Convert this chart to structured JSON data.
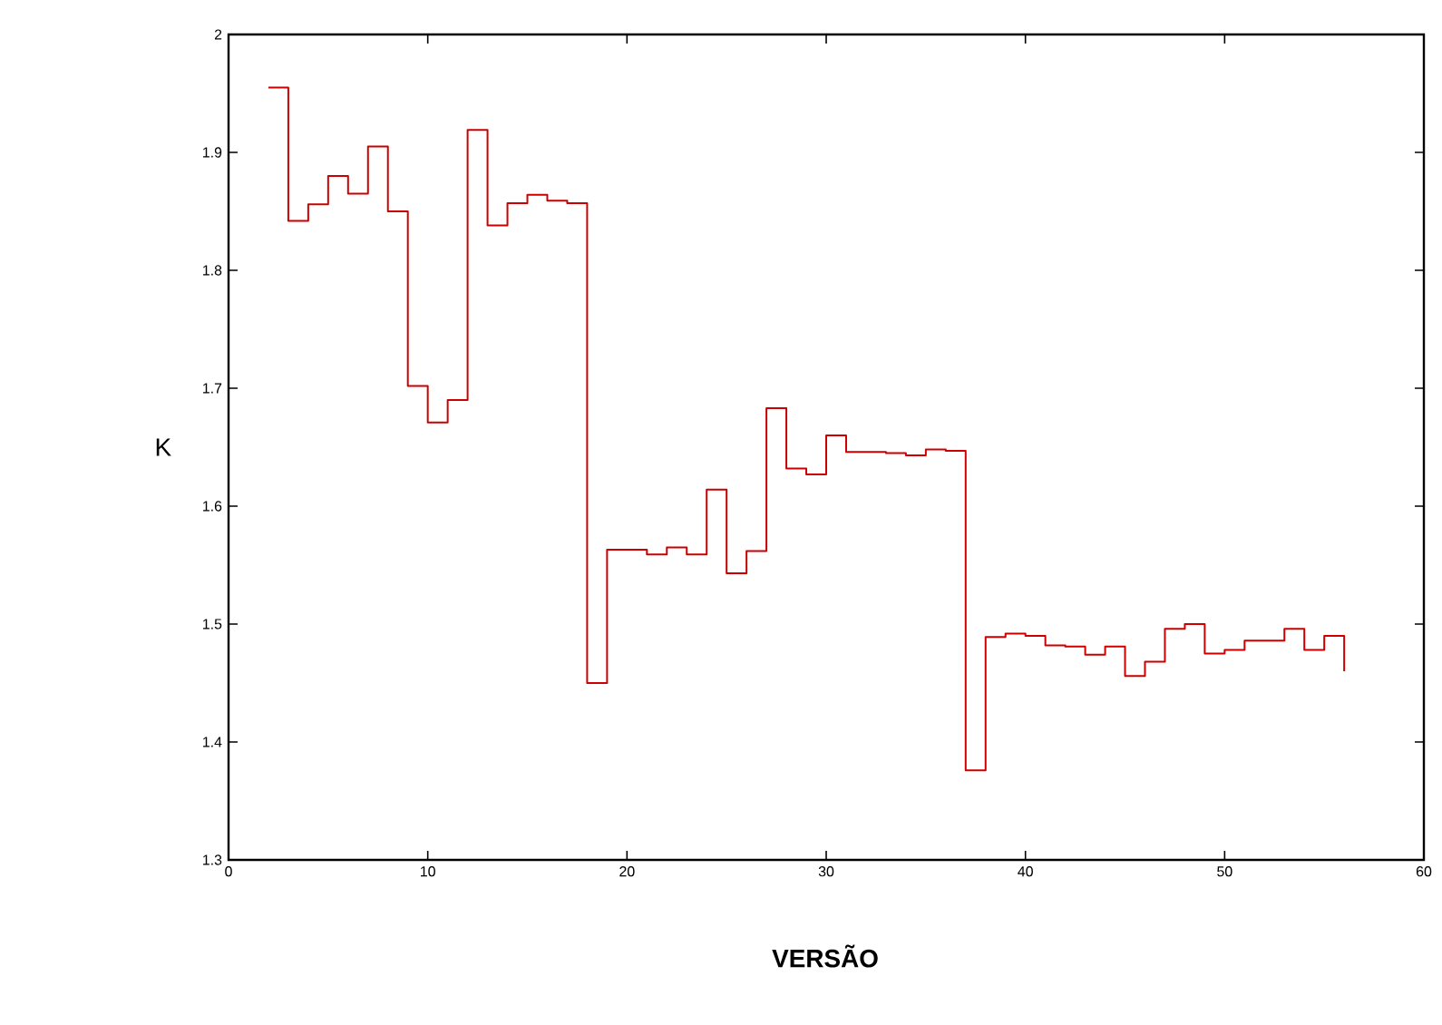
{
  "chart_data": {
    "type": "step",
    "xlabel": "VERSÃO",
    "ylabel": "K",
    "x": [
      2,
      3,
      4,
      5,
      6,
      7,
      8,
      9,
      10,
      11,
      12,
      13,
      14,
      15,
      16,
      17,
      18,
      19,
      20,
      21,
      22,
      23,
      24,
      25,
      26,
      27,
      28,
      29,
      30,
      31,
      32,
      33,
      34,
      35,
      36,
      37,
      38,
      39,
      40,
      41,
      42,
      43,
      44,
      45,
      46,
      47,
      48,
      49,
      50,
      51,
      52,
      53,
      54,
      55,
      56
    ],
    "series": [
      {
        "color": "#cc0000",
        "values": [
          1.955,
          1.842,
          1.856,
          1.88,
          1.865,
          1.905,
          1.85,
          1.702,
          1.671,
          1.69,
          1.919,
          1.838,
          1.857,
          1.864,
          1.859,
          1.857,
          1.45,
          1.563,
          1.563,
          1.559,
          1.565,
          1.559,
          1.614,
          1.543,
          1.562,
          1.683,
          1.632,
          1.627,
          1.66,
          1.646,
          1.646,
          1.645,
          1.643,
          1.648,
          1.647,
          1.376,
          1.489,
          1.492,
          1.49,
          1.482,
          1.481,
          1.474,
          1.481,
          1.456,
          1.468,
          1.496,
          1.5,
          1.475,
          1.478,
          1.486,
          1.486,
          1.496,
          1.478,
          1.49,
          1.46
        ]
      }
    ],
    "xlim": [
      0,
      60
    ],
    "xticks": [
      0,
      10,
      20,
      30,
      40,
      50,
      60
    ],
    "ylim": [
      1.3,
      2
    ],
    "yticks": [
      1.3,
      1.4,
      1.5,
      1.6,
      1.7,
      1.8,
      1.9,
      2
    ],
    "grid": false
  }
}
